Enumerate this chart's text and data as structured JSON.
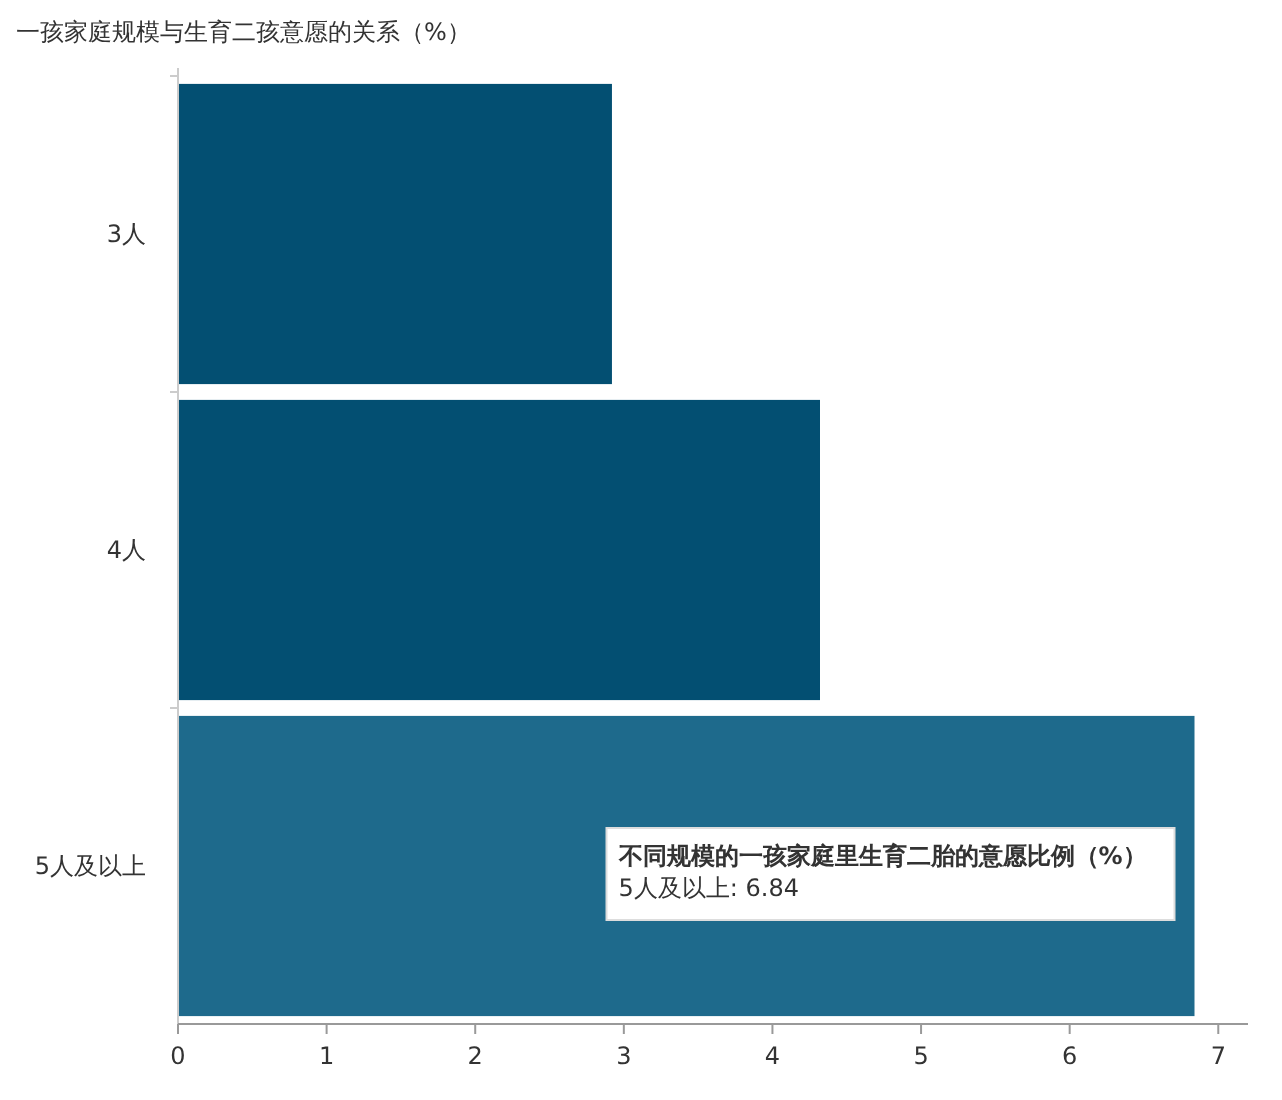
{
  "chart_data": {
    "type": "bar",
    "orientation": "horizontal",
    "title": "一孩家庭规模与生育二孩意愿的关系（%）",
    "categories": [
      "3人",
      "4人",
      "5人及以上"
    ],
    "values": [
      2.92,
      4.32,
      6.84
    ],
    "colors": [
      "#034f72",
      "#034f72",
      "#1e6a8c"
    ],
    "xlim": [
      0,
      7.2
    ],
    "xticks": [
      0,
      1,
      2,
      3,
      4,
      5,
      6,
      7
    ],
    "grid": false,
    "annotations": [
      "不同规模的一孩家庭里生育二胎的意愿比例（%）",
      "5人及以上: 6.84"
    ]
  }
}
